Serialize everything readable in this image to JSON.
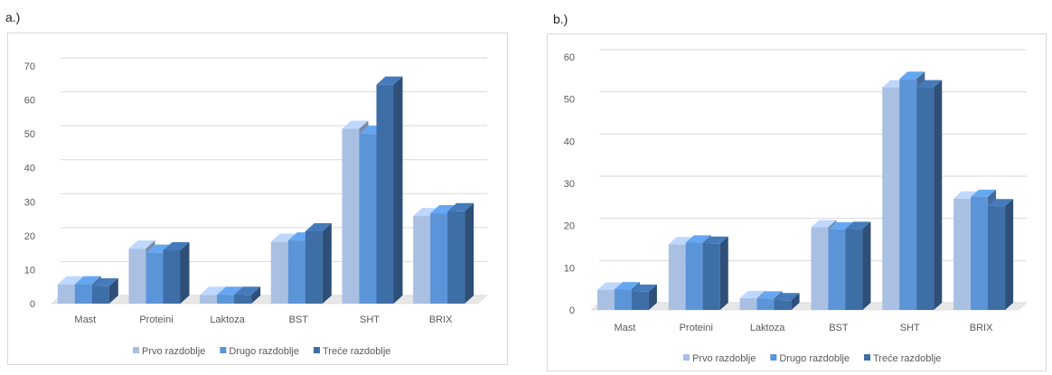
{
  "panels": [
    {
      "label": "a.)"
    },
    {
      "label": "b.)"
    }
  ],
  "colors": {
    "series": [
      "#a9c0e3",
      "#5b95d8",
      "#3e6ea6"
    ],
    "grid": "#d9d9d9",
    "text": "#595959"
  },
  "chart_data": [
    {
      "type": "bar",
      "categories": [
        "Mast",
        "Proteini",
        "Laktoza",
        "BST",
        "SHT",
        "BRIX"
      ],
      "series": [
        {
          "name": "Prvo razdoblje",
          "values": [
            5.7,
            16.2,
            2.6,
            18.2,
            51.5,
            25.8
          ]
        },
        {
          "name": "Drugo razdoblje",
          "values": [
            5.7,
            15.0,
            2.6,
            18.6,
            50.0,
            26.6
          ]
        },
        {
          "name": "Treće razdoblje",
          "values": [
            5.1,
            15.7,
            2.6,
            21.3,
            64.5,
            27.2
          ]
        }
      ],
      "yticks": [
        0,
        10,
        20,
        30,
        40,
        50,
        60,
        70
      ],
      "ylim": [
        0,
        70
      ],
      "grid": true,
      "legend": "bottom"
    },
    {
      "type": "bar",
      "categories": [
        "Mast",
        "Proteini",
        "Laktoza",
        "BST",
        "SHT",
        "BRIX"
      ],
      "series": [
        {
          "name": "Prvo razdoblje",
          "values": [
            4.8,
            15.6,
            2.8,
            19.6,
            52.8,
            26.4
          ]
        },
        {
          "name": "Drugo razdoblje",
          "values": [
            4.9,
            16.0,
            2.7,
            19.1,
            54.8,
            26.8
          ]
        },
        {
          "name": "Treće razdoblje",
          "values": [
            4.3,
            15.7,
            2.3,
            19.2,
            52.8,
            24.6
          ]
        }
      ],
      "yticks": [
        0,
        10,
        20,
        30,
        40,
        50,
        60
      ],
      "ylim": [
        0,
        60
      ],
      "grid": true,
      "legend": "bottom"
    }
  ]
}
